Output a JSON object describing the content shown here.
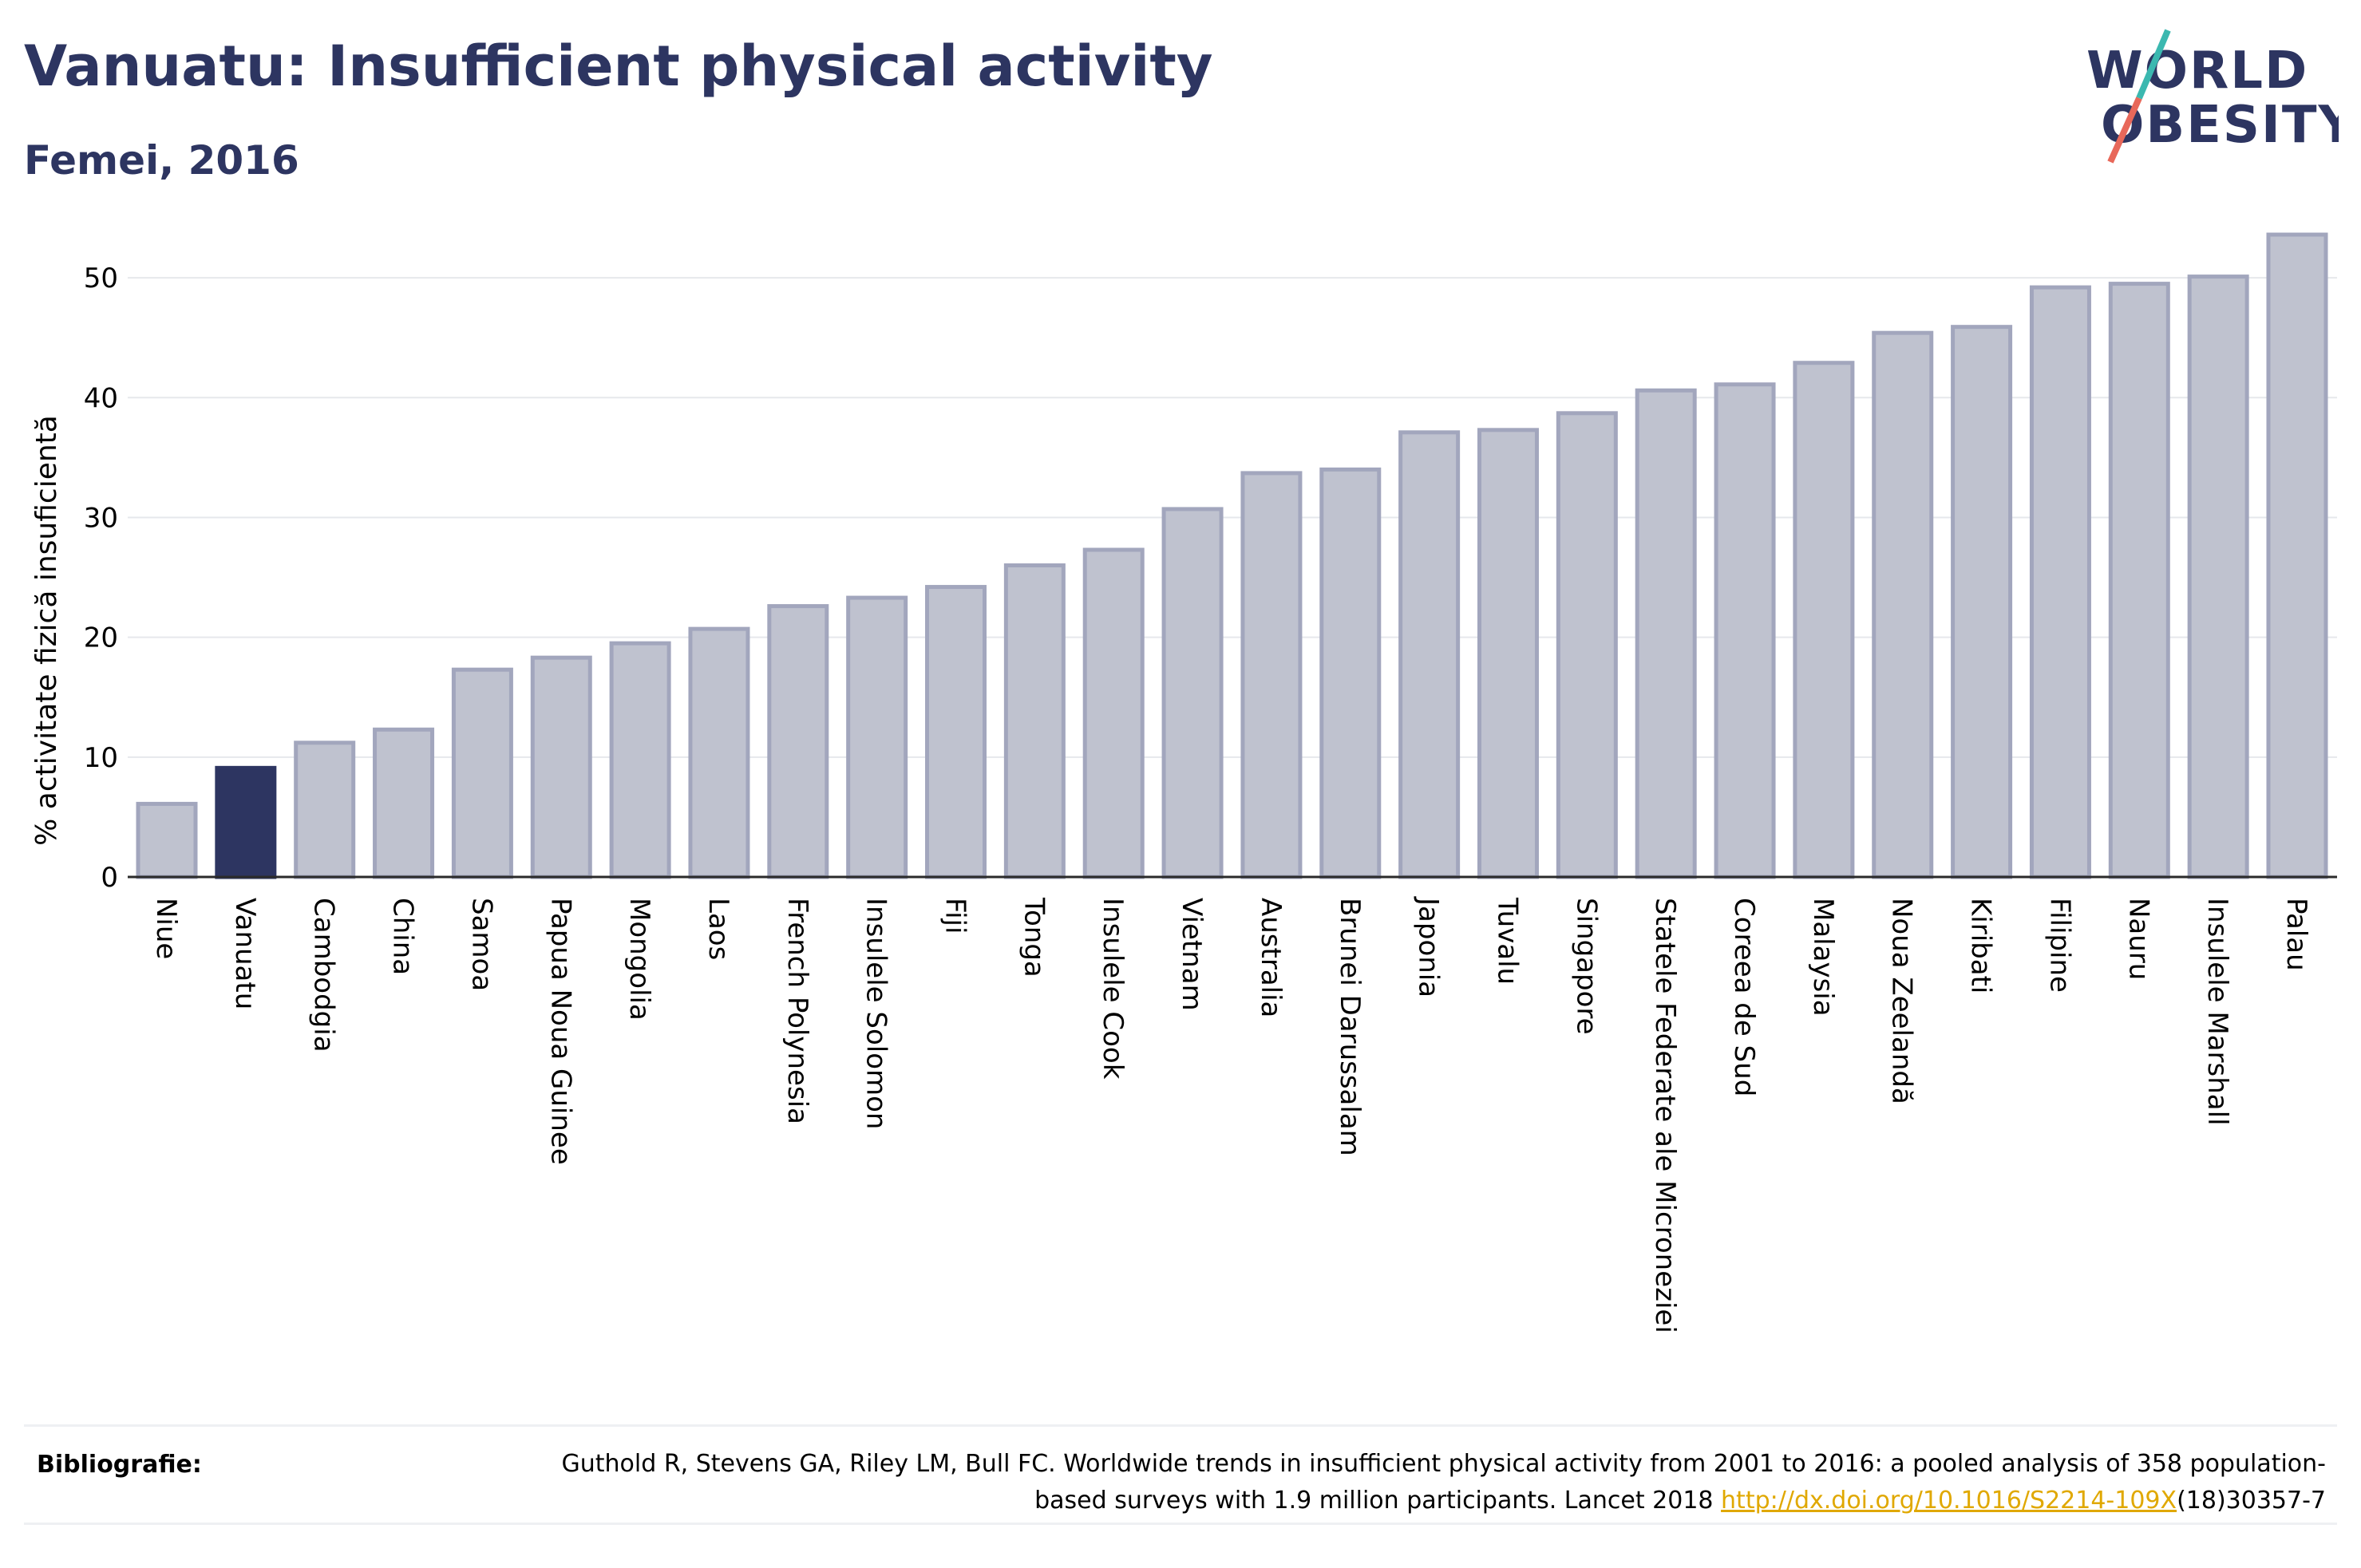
{
  "header": {
    "title": "Vanuatu: Insufficient physical activity",
    "subtitle": "Femei, 2016"
  },
  "logo": {
    "line1": "WORLD",
    "line2": "OBESITY"
  },
  "colors": {
    "bar": "#bfc2cf",
    "bar_stroke": "#a2a6bd",
    "highlight": "#2d3561",
    "grid": "#e6e8ec",
    "logo_text": "#2d3561",
    "logo_slash_top": "#3bb8b0",
    "logo_slash_bottom": "#e8685a"
  },
  "chart_data": {
    "type": "bar",
    "ylabel": "% activitate fizică insuficientă",
    "ylim": [
      0,
      55
    ],
    "yticks": [
      0,
      10,
      20,
      30,
      40,
      50
    ],
    "grid": true,
    "highlight": "Vanuatu",
    "categories": [
      "Niue",
      "Vanuatu",
      "Cambodgia",
      "China",
      "Samoa",
      "Papua Noua Guinee",
      "Mongolia",
      "Laos",
      "French Polynesia",
      "Insulele Solomon",
      "Fiji",
      "Tonga",
      "Insulele Cook",
      "Vietnam",
      "Australia",
      "Brunei Darussalam",
      "Japonia",
      "Tuvalu",
      "Singapore",
      "Statele Federate ale Microneziei",
      "Coreea de Sud",
      "Malaysia",
      "Noua Zeelandă",
      "Kiribati",
      "Filipine",
      "Nauru",
      "Insulele Marshall",
      "Palau"
    ],
    "values": [
      6.1,
      9.1,
      11.2,
      12.3,
      17.3,
      18.3,
      19.5,
      20.7,
      22.6,
      23.3,
      24.2,
      26.0,
      27.3,
      30.7,
      33.7,
      34.0,
      37.1,
      37.3,
      38.7,
      40.6,
      41.1,
      42.9,
      45.4,
      45.9,
      49.2,
      49.5,
      50.1,
      53.6
    ]
  },
  "bibliography": {
    "label": "Bibliografie:",
    "text_before_link": "Guthold R, Stevens GA, Riley LM, Bull FC. Worldwide trends in insufficient physical activity from 2001 to 2016: a pooled analysis of 358 population-based surveys with 1.9 million participants. Lancet 2018 ",
    "link": "http://dx.doi.org/10.1016/S2214-109X",
    "text_after_link": "(18)30357-7"
  }
}
